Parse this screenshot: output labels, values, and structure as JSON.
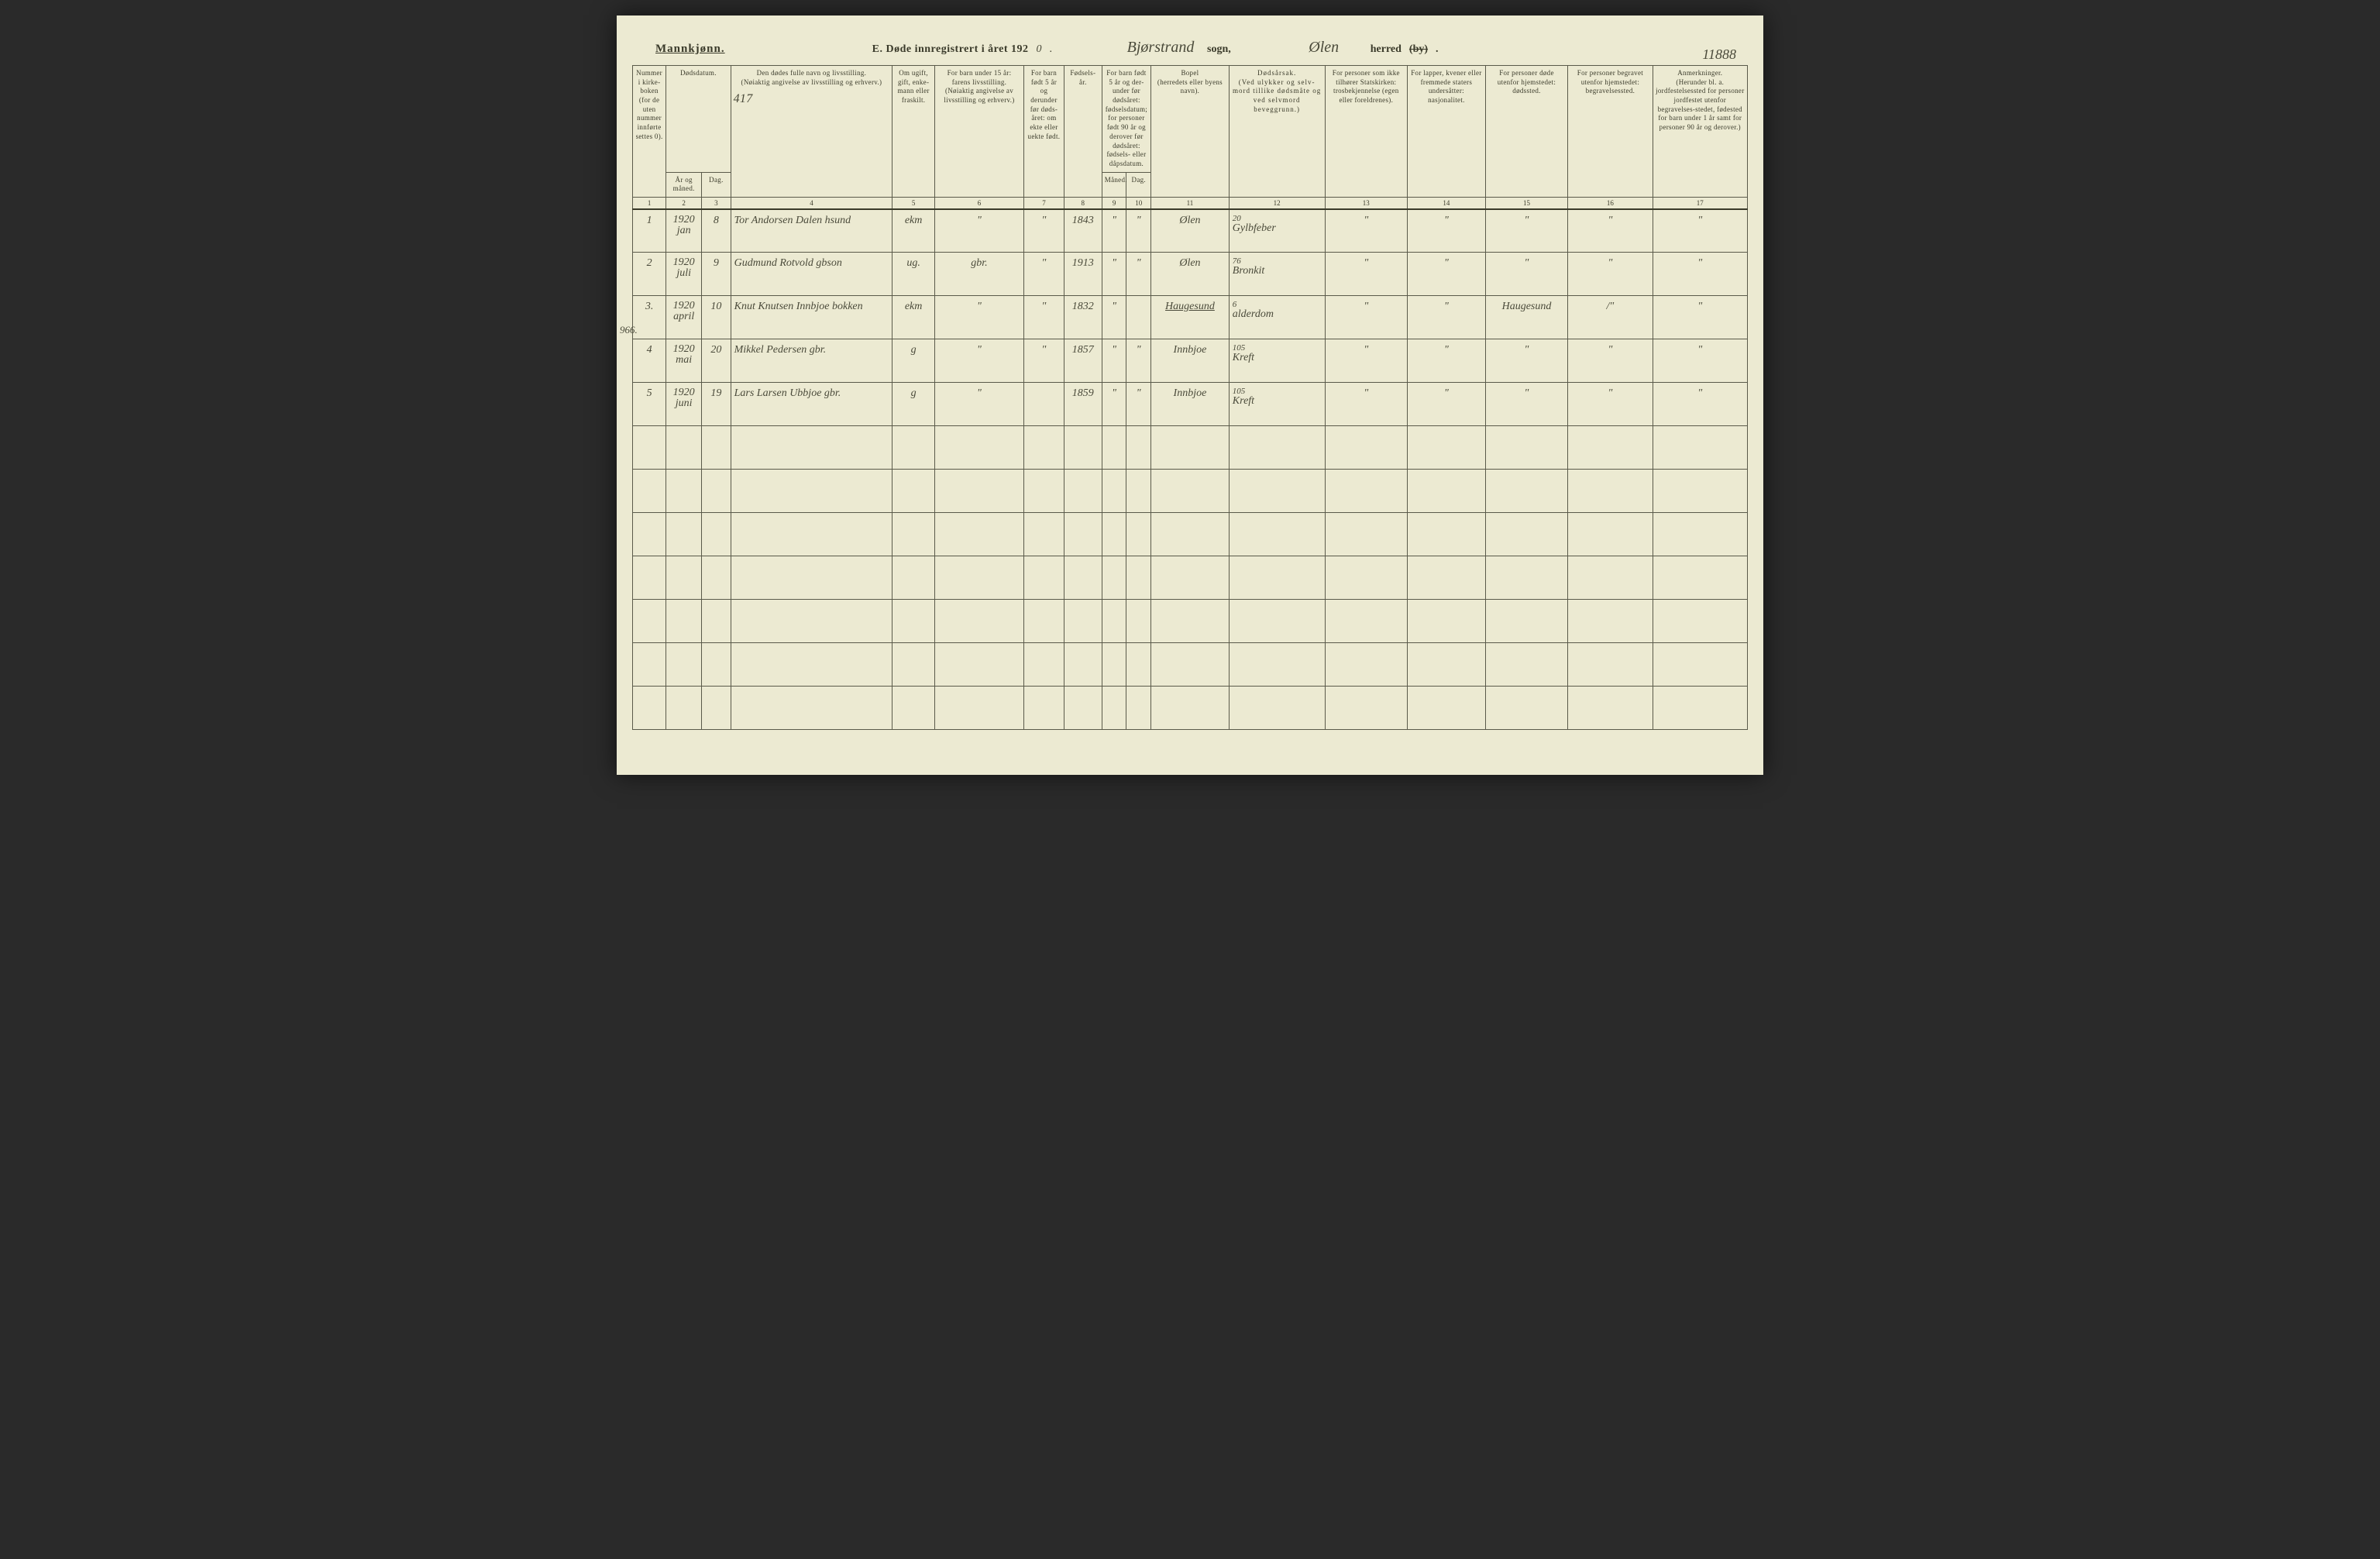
{
  "page_number_handwritten": "11888",
  "margin_note": "966.",
  "header": {
    "gender_label": "Mannkjønn.",
    "title_prefix": "E.  Døde innregistrert i året 192",
    "year_last_digit_hand": "0",
    "title_suffix": " .",
    "parish_hand": "Bjørstrand",
    "parish_label": "sogn,",
    "district_hand": "Ølen",
    "district_label": "herred",
    "struck_word": "(by)",
    "period": "."
  },
  "column_headers": {
    "c1": "Nummer i kirke-boken (for de uten nummer innførte settes 0).",
    "c2": "Dødsdatum.",
    "c2a": "År og måned.",
    "c2b": "Dag.",
    "c3": "Den dødes fulle navn og livsstilling.\n(Nøiaktig angivelse av livsstilling og erhverv.)",
    "c3_hand": "417",
    "c4": "Om ugift, gift, enke-mann eller fraskilt.",
    "c5": "For barn under 15 år:\nfarens livsstilling.\n(Nøiaktig angivelse av livsstilling og erhverv.)",
    "c6": "For barn født 5 år og derunder før døds-året: om ekte eller uekte født.",
    "c7": "Fødsels-år.",
    "c8": "For barn født 5 år og der-under før dødsåret: fødselsdatum; for personer født 90 år og derover før dødsåret: fødsels- eller dåpsdatum.",
    "c8a": "Måned.",
    "c8b": "Dag.",
    "c9": "Bopel\n(herredets eller byens navn).",
    "c10": "Dødsårsak.\n(Ved ulykker og selv-mord tillike dødsmåte og ved selvmord beveggrunn.)",
    "c11": "For personer som ikke tilhører Statskirken: trosbekjennelse (egen eller foreldrenes).",
    "c12": "For lapper, kvener eller fremmede staters undersåtter: nasjonalitet.",
    "c13": "For personer døde utenfor hjemstedet: dødssted.",
    "c14": "For personer begravet utenfor hjemstedet: begravelsessted.",
    "c15": "Anmerkninger.\n(Herunder bl. a. jordfestelsessted for personer jordfestet utenfor begravelses-stedet, fødested for barn under 1 år samt for personer 90 år og derover.)"
  },
  "colnums": [
    "1",
    "2",
    "3",
    "4",
    "5",
    "6",
    "7",
    "8",
    "9",
    "10",
    "11",
    "12",
    "13",
    "14",
    "15",
    "16",
    "17"
  ],
  "rows": [
    {
      "n": "1",
      "ym": "1920\njan",
      "d": "8",
      "name": "Tor Andorsen Dalen hsund",
      "ms": "ekm",
      "father": "\"",
      "legit": "\"",
      "by": "1843",
      "bm": "\"",
      "bd": "\"",
      "place": "Ølen",
      "cause_top": "20",
      "cause": "Gylbfeber",
      "rel": "\"",
      "nat": "\"",
      "dplace": "\"",
      "bplace": "\"",
      "rem": "\""
    },
    {
      "n": "2",
      "ym": "1920\njuli",
      "d": "9",
      "name": "Gudmund Rotvold gbson",
      "ms": "ug.",
      "father": "gbr.",
      "legit": "\"",
      "by": "1913",
      "bm": "\"",
      "bd": "\"",
      "place": "Ølen",
      "cause_top": "76",
      "cause": "Bronkit",
      "rel": "\"",
      "nat": "\"",
      "dplace": "\"",
      "bplace": "\"",
      "rem": "\""
    },
    {
      "n": "3.",
      "ym": "1920\napril",
      "d": "10",
      "name": "Knut Knutsen Innbjoe bokken",
      "ms": "ekm",
      "father": "\"",
      "legit": "\"",
      "by": "1832",
      "bm": "\"",
      "bd": "",
      "place": "Haugesund",
      "place_underline": true,
      "cause_top": "6",
      "cause": "alderdom",
      "rel": "\"",
      "nat": "\"",
      "dplace": "Haugesund",
      "bplace": "/\"",
      "rem": "\""
    },
    {
      "n": "4",
      "ym": "1920\nmai",
      "d": "20",
      "name": "Mikkel Pedersen gbr.",
      "ms": "g",
      "father": "\"",
      "legit": "\"",
      "by": "1857",
      "bm": "\"",
      "bd": "\"",
      "place": "Innbjoe",
      "cause_top": "105",
      "cause": "Kreft",
      "rel": "\"",
      "nat": "\"",
      "dplace": "\"",
      "bplace": "\"",
      "rem": "\""
    },
    {
      "n": "5",
      "ym": "1920\njuni",
      "d": "19",
      "name": "Lars Larsen Ubbjoe  gbr.",
      "ms": "g",
      "father": "\"",
      "legit": "",
      "by": "1859",
      "bm": "\"",
      "bd": "\"",
      "place": "Innbjoe",
      "cause_top": "105",
      "cause": "Kreft",
      "rel": "\"",
      "nat": "\"",
      "dplace": "\"",
      "bplace": "\"",
      "rem": "\""
    }
  ],
  "blank_row_count": 7,
  "col_widths_pct": [
    3.0,
    3.2,
    2.6,
    14.5,
    3.8,
    8.0,
    3.6,
    3.4,
    2.2,
    2.2,
    7.0,
    8.6,
    7.4,
    7.0,
    7.4,
    7.6,
    8.5
  ],
  "colors": {
    "paper": "#ecead2",
    "ink": "#3a3a2a",
    "rule": "#5a5a4a",
    "background": "#2a2a2a"
  }
}
